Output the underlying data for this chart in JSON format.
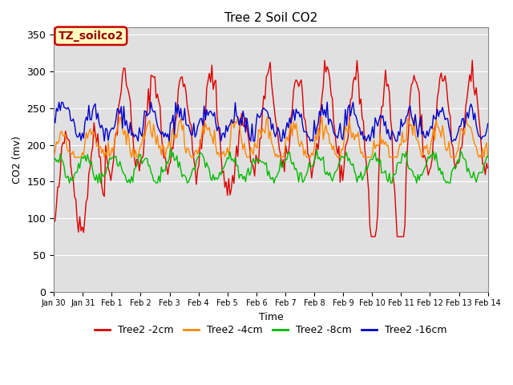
{
  "title": "Tree 2 Soil CO2",
  "xlabel": "Time",
  "ylabel": "CO2 (mv)",
  "ylim": [
    0,
    360
  ],
  "yticks": [
    0,
    50,
    100,
    150,
    200,
    250,
    300,
    350
  ],
  "background_color": "#ffffff",
  "plot_bg_color": "#e0e0e0",
  "annotation_text": "TZ_soilco2",
  "annotation_bg": "#ffffc0",
  "annotation_border": "#cc0000",
  "series": [
    {
      "label": "Tree2 -2cm",
      "color": "#dd0000",
      "lw": 1.0
    },
    {
      "label": "Tree2 -4cm",
      "color": "#ff8800",
      "lw": 1.0
    },
    {
      "label": "Tree2 -8cm",
      "color": "#00bb00",
      "lw": 1.0
    },
    {
      "label": "Tree2 -16cm",
      "color": "#0000cc",
      "lw": 1.0
    }
  ],
  "xtick_labels": [
    "Jan 30",
    "Jan 31",
    "Feb 1",
    "Feb 2",
    "Feb 3",
    "Feb 4",
    "Feb 5",
    "Feb 6",
    "Feb 7",
    "Feb 8",
    "Feb 9",
    "Feb 10",
    "Feb 11",
    "Feb 12",
    "Feb 13",
    "Feb 14"
  ],
  "n_points": 336,
  "days": 15
}
